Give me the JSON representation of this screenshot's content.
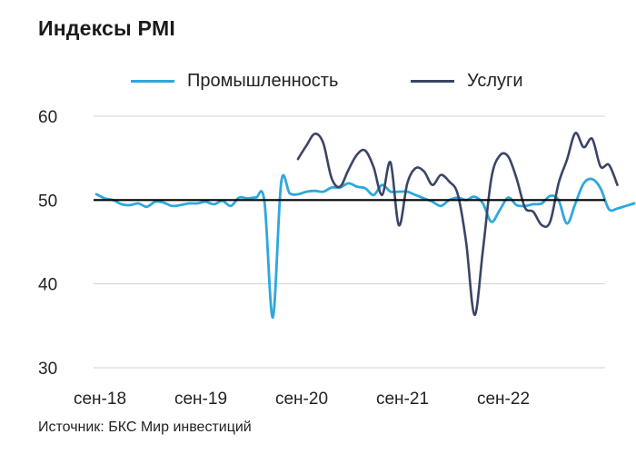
{
  "title": "Индексы PMI",
  "source": "Источник: БКС Мир инвестиций",
  "colors": {
    "industry": "#2ea8dc",
    "services": "#3a4566",
    "reference": "#000000",
    "grid": "#d0d0d0"
  },
  "chart_data": {
    "type": "line",
    "title": "Индексы PMI",
    "legend_position": "top",
    "grid": true,
    "ylim": [
      30,
      60
    ],
    "yticks": [
      30,
      40,
      50,
      60
    ],
    "reference_line": 50,
    "x_ticks": [
      "сен-18",
      "сен-19",
      "сен-20",
      "сен-21",
      "сен-22"
    ],
    "x_unit": "month",
    "x_start": "сен-18",
    "series": [
      {
        "name": "Промышленность",
        "start_index": 0,
        "values": [
          50.7,
          50.2,
          50.0,
          49.5,
          49.4,
          49.6,
          49.2,
          49.8,
          49.7,
          49.3,
          49.4,
          49.6,
          49.6,
          49.8,
          49.5,
          49.9,
          49.3,
          50.3,
          50.2,
          50.3,
          49.9,
          36.0,
          52.1,
          50.8,
          50.7,
          51.0,
          51.1,
          51.0,
          51.5,
          51.5,
          52.0,
          51.6,
          51.4,
          50.6,
          51.8,
          51.0,
          51.0,
          51.0,
          50.6,
          50.2,
          49.8,
          49.3,
          50.0,
          50.3,
          50.0,
          50.4,
          49.6,
          47.4,
          48.8,
          50.3,
          49.4,
          49.3,
          49.5,
          49.6,
          50.5,
          50.0,
          47.2,
          49.6,
          52.0,
          52.5,
          51.4,
          48.9,
          49.0,
          49.3,
          49.6
        ]
      },
      {
        "name": "Услуги",
        "start_index": 24,
        "values": [
          54.9,
          56.5,
          57.9,
          56.8,
          52.6,
          51.6,
          53.6,
          55.4,
          55.9,
          53.9,
          50.6,
          54.5,
          47.0,
          52.0,
          53.8,
          53.4,
          51.8,
          53.0,
          52.2,
          50.7,
          45.0,
          36.3,
          44.0,
          52.6,
          55.3,
          55.2,
          52.6,
          49.1,
          48.6,
          47.0,
          47.4,
          52.0,
          54.8,
          58.0,
          56.3,
          57.3,
          54.0,
          54.2,
          51.8
        ]
      }
    ]
  }
}
